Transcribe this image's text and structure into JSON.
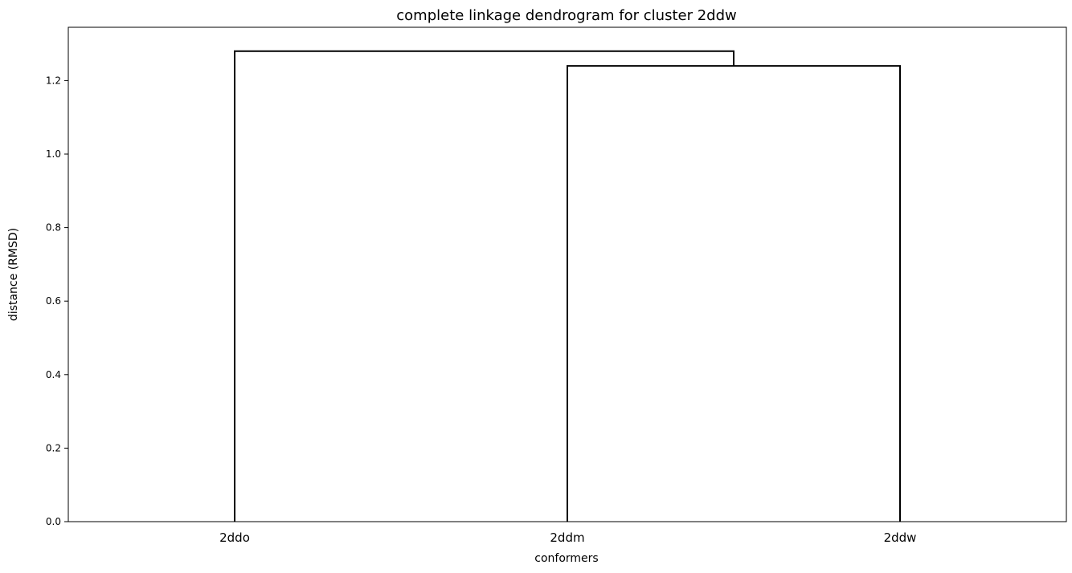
{
  "chart_data": {
    "type": "dendrogram",
    "title": "complete linkage dendrogram for cluster 2ddw",
    "xlabel": "conformers",
    "ylabel": "distance (RMSD)",
    "leaves": [
      "2ddo",
      "2ddm",
      "2ddw"
    ],
    "ylim": [
      0,
      1.345
    ],
    "yticks": [
      0.0,
      0.2,
      0.4,
      0.6,
      0.8,
      1.0,
      1.2
    ],
    "ytick_labels": [
      "0.0",
      "0.2",
      "0.4",
      "0.6",
      "0.8",
      "1.0",
      "1.2"
    ],
    "merges": [
      {
        "left": "2ddm",
        "right": "2ddw",
        "distance": 1.24
      },
      {
        "left": "2ddo",
        "right": "(2ddm, 2ddw)",
        "distance": 1.28
      }
    ],
    "link_color": "#000000",
    "grid": false
  }
}
